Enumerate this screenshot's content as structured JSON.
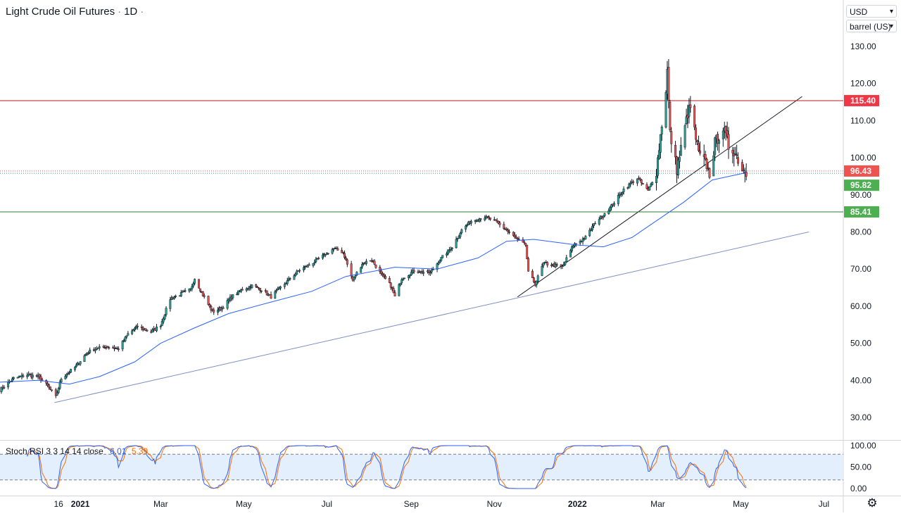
{
  "header": {
    "symbol": "Light Crude Oil Futures",
    "interval": "1D",
    "separator": "·"
  },
  "selectors": {
    "currency": "USD",
    "unit": "barrel (US)"
  },
  "icons": {
    "settings": "gear-icon",
    "dropdown": "chevron-down-icon"
  },
  "colors": {
    "up": "#26a69a",
    "down": "#ef5350",
    "candle_outline": "#131722",
    "ma": "#2962ff",
    "resistance": "#b71c1c",
    "support": "#2e7d32",
    "trend_long": "#7e8fc4",
    "trend_short": "#131722",
    "stoch_k": "#2962ff",
    "stoch_d": "#ff6d00",
    "stoch_band": "#e3effd"
  },
  "chart_data": {
    "type": "candlestick",
    "title": "Light Crude Oil Futures · 1D",
    "price_axis": {
      "ylim": [
        23,
        138
      ],
      "ticks": [
        30,
        40,
        50,
        60,
        70,
        80,
        90,
        100,
        110,
        120,
        130
      ],
      "tick_labels": [
        "30.00",
        "40.00",
        "50.00",
        "60.00",
        "70.00",
        "80.00",
        "90.00",
        "100.00",
        "110.00",
        "120.00",
        "130.00"
      ]
    },
    "time_axis": {
      "xlim": [
        "2020-11-03",
        "2022-07-08"
      ],
      "ticks": [
        "2020-12-16",
        "2021-01-01",
        "2021-03-01",
        "2021-05-01",
        "2021-07-01",
        "2021-09-01",
        "2021-11-01",
        "2022-01-01",
        "2022-03-01",
        "2022-05-01",
        "2022-07-01"
      ],
      "tick_labels": [
        "16",
        "2021",
        "Mar",
        "May",
        "Jul",
        "Sep",
        "Nov",
        "2022",
        "Mar",
        "May",
        "Jul"
      ]
    },
    "close_path": [
      [
        "2020-11-03",
        37.5
      ],
      [
        "2020-11-13",
        40.5
      ],
      [
        "2020-11-23",
        41.5
      ],
      [
        "2020-12-01",
        41.0
      ],
      [
        "2020-12-08",
        38.5
      ],
      [
        "2020-12-14",
        35.5
      ],
      [
        "2020-12-18",
        40.5
      ],
      [
        "2020-12-28",
        43.5
      ],
      [
        "2021-01-06",
        47.5
      ],
      [
        "2021-01-12",
        48.5
      ],
      [
        "2021-01-20",
        49.0
      ],
      [
        "2021-01-29",
        48.5
      ],
      [
        "2021-02-05",
        52.5
      ],
      [
        "2021-02-12",
        54.5
      ],
      [
        "2021-02-22",
        53.0
      ],
      [
        "2021-03-01",
        55.0
      ],
      [
        "2021-03-08",
        62.0
      ],
      [
        "2021-03-17",
        63.5
      ],
      [
        "2021-03-23",
        64.5
      ],
      [
        "2021-03-26",
        67.5
      ],
      [
        "2021-04-01",
        63.0
      ],
      [
        "2021-04-08",
        58.5
      ],
      [
        "2021-04-15",
        59.5
      ],
      [
        "2021-04-22",
        62.5
      ],
      [
        "2021-04-30",
        64.5
      ],
      [
        "2021-05-07",
        65.5
      ],
      [
        "2021-05-14",
        64.5
      ],
      [
        "2021-05-21",
        62.5
      ],
      [
        "2021-05-31",
        66.0
      ],
      [
        "2021-06-10",
        69.5
      ],
      [
        "2021-06-22",
        72.0
      ],
      [
        "2021-06-30",
        74.0
      ],
      [
        "2021-07-06",
        75.5
      ],
      [
        "2021-07-13",
        74.5
      ],
      [
        "2021-07-20",
        67.0
      ],
      [
        "2021-07-27",
        71.5
      ],
      [
        "2021-08-03",
        72.5
      ],
      [
        "2021-08-10",
        68.5
      ],
      [
        "2021-08-17",
        65.5
      ],
      [
        "2021-08-20",
        62.5
      ],
      [
        "2021-08-25",
        67.5
      ],
      [
        "2021-09-03",
        69.5
      ],
      [
        "2021-09-15",
        69.0
      ],
      [
        "2021-09-22",
        72.5
      ],
      [
        "2021-10-01",
        76.0
      ],
      [
        "2021-10-08",
        80.5
      ],
      [
        "2021-10-15",
        83.0
      ],
      [
        "2021-10-25",
        84.0
      ],
      [
        "2021-11-01",
        83.0
      ],
      [
        "2021-11-10",
        80.5
      ],
      [
        "2021-11-19",
        77.5
      ],
      [
        "2021-11-24",
        76.5
      ],
      [
        "2021-11-26",
        69.0
      ],
      [
        "2021-12-01",
        66.0
      ],
      [
        "2021-12-07",
        71.5
      ],
      [
        "2021-12-15",
        71.0
      ],
      [
        "2021-12-21",
        70.5
      ],
      [
        "2021-12-29",
        76.5
      ],
      [
        "2022-01-07",
        78.5
      ],
      [
        "2022-01-14",
        82.5
      ],
      [
        "2022-01-25",
        86.5
      ],
      [
        "2022-02-04",
        91.5
      ],
      [
        "2022-02-14",
        94.5
      ],
      [
        "2022-02-22",
        91.0
      ],
      [
        "2022-02-28",
        96.5
      ],
      [
        "2022-03-03",
        106.0
      ],
      [
        "2022-03-07",
        118.5
      ],
      [
        "2022-03-08",
        123.5
      ],
      [
        "2022-03-10",
        106.5
      ],
      [
        "2022-03-15",
        97.0
      ],
      [
        "2022-03-17",
        100.5
      ],
      [
        "2022-03-23",
        112.0
      ],
      [
        "2022-03-25",
        113.5
      ],
      [
        "2022-03-31",
        101.0
      ],
      [
        "2022-04-06",
        98.0
      ],
      [
        "2022-04-08",
        95.0
      ],
      [
        "2022-04-12",
        104.0
      ],
      [
        "2022-04-18",
        108.0
      ],
      [
        "2022-04-22",
        103.0
      ],
      [
        "2022-04-26",
        102.0
      ],
      [
        "2022-04-28",
        100.5
      ],
      [
        "2022-05-02",
        97.0
      ],
      [
        "2022-05-05",
        96.43
      ]
    ],
    "moving_average": [
      [
        "2020-11-03",
        39.5
      ],
      [
        "2020-12-01",
        40.0
      ],
      [
        "2020-12-24",
        39.0
      ],
      [
        "2021-01-15",
        41.0
      ],
      [
        "2021-02-10",
        45.0
      ],
      [
        "2021-03-01",
        50.0
      ],
      [
        "2021-03-25",
        54.0
      ],
      [
        "2021-04-20",
        58.0
      ],
      [
        "2021-05-20",
        61.0
      ],
      [
        "2021-06-20",
        64.0
      ],
      [
        "2021-07-15",
        68.0
      ],
      [
        "2021-08-20",
        70.5
      ],
      [
        "2021-09-20",
        70.0
      ],
      [
        "2021-10-20",
        73.0
      ],
      [
        "2021-11-10",
        77.5
      ],
      [
        "2021-11-30",
        78.0
      ],
      [
        "2021-12-31",
        76.5
      ],
      [
        "2022-01-20",
        76.0
      ],
      [
        "2022-02-10",
        78.5
      ],
      [
        "2022-02-28",
        83.0
      ],
      [
        "2022-03-20",
        88.0
      ],
      [
        "2022-04-10",
        94.0
      ],
      [
        "2022-05-05",
        96.0
      ]
    ],
    "trendlines": [
      {
        "name": "long-term support",
        "from": [
          "2020-12-13",
          34.0
        ],
        "to": [
          "2022-06-20",
          80.0
        ]
      },
      {
        "name": "short-term support",
        "from": [
          "2021-11-18",
          62.5
        ],
        "to": [
          "2022-06-15",
          116.5
        ]
      }
    ],
    "levels": [
      {
        "name": "resistance",
        "value": 115.4,
        "label": "115.40"
      },
      {
        "name": "support",
        "value": 85.41,
        "label": "85.41"
      }
    ],
    "last_price": {
      "value": 96.43,
      "label": "96.43"
    },
    "marker_price": {
      "value": 95.82,
      "label": "95.82"
    },
    "stoch_rsi": {
      "title": "Stoch RSI",
      "params": "3 3 14 14 close",
      "k_value": "6.01",
      "d_value": "5.39",
      "ylim": [
        -4,
        104
      ],
      "ticks": [
        0,
        50,
        100
      ],
      "tick_labels": [
        "0.00",
        "50.00",
        "100.00"
      ],
      "band": [
        20,
        80
      ]
    }
  }
}
